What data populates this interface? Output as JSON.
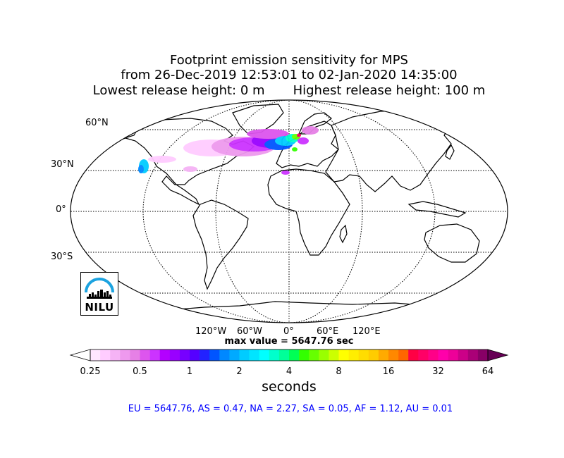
{
  "title": {
    "line1": "Footprint emission sensitivity for MPS",
    "line2": "from 26-Dec-2019 12:53:01 to 02-Jan-2020 14:35:00",
    "line3": "Lowest release height: 0 m       Highest release height: 100 m"
  },
  "map": {
    "projection": "robinson",
    "lat_labels": [
      "60°N",
      "30°N",
      "0°",
      "30°S"
    ],
    "lon_labels": [
      "120°W",
      "60°W",
      "0°",
      "60°E",
      "120°E"
    ],
    "gridlines": "dotted",
    "sensitivity_region": "North Atlantic Ocean, Europe and western Mediterranean, from off the eastern coast of North America to Scandinavia",
    "max_value_text": "max value = 5647.76 sec"
  },
  "colorbar": {
    "label": "seconds",
    "ticks": [
      "0.25",
      "0.5",
      "1",
      "2",
      "4",
      "8",
      "16",
      "32",
      "64"
    ],
    "scale": "log",
    "colors": [
      "#ffe6ff",
      "#ffccff",
      "#f5b3f5",
      "#ee99ee",
      "#e680e6",
      "#dd55ee",
      "#cc33ff",
      "#b300ff",
      "#9900ff",
      "#7700ff",
      "#5500ff",
      "#2222ff",
      "#0055ff",
      "#0088ff",
      "#00aaff",
      "#00ccff",
      "#00e5ff",
      "#00ffff",
      "#00ffcc",
      "#00ff99",
      "#00ff55",
      "#33ff00",
      "#66ff00",
      "#99ff00",
      "#ccff00",
      "#ffff00",
      "#ffee00",
      "#ffdd00",
      "#ffcc00",
      "#ffaa00",
      "#ff8800",
      "#ff6600",
      "#ff0044",
      "#ff0066",
      "#ff0088",
      "#ff00aa",
      "#ee0099",
      "#cc0088",
      "#aa0077",
      "#880066"
    ]
  },
  "footer": "EU = 5647.76,  AS = 0.47,  NA = 2.27,  SA = 0.05,  AF = 1.12,  AU = 0.01",
  "footer_color": "#0000ff",
  "logo": {
    "text": "NILU",
    "arc_color": "#1ca3e0"
  }
}
